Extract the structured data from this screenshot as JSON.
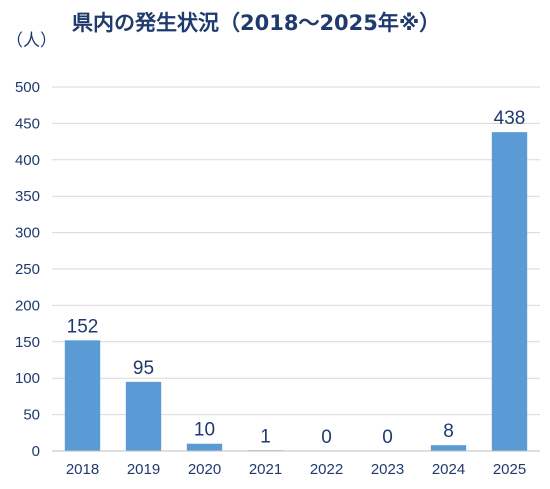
{
  "chart_data": {
    "type": "bar",
    "title": "県内の発生状況（2018～2025年※）",
    "ylabel": "（人）",
    "xlabel": "",
    "categories": [
      "2018",
      "2019",
      "2020",
      "2021",
      "2022",
      "2023",
      "2024",
      "2025"
    ],
    "values": [
      152,
      95,
      10,
      1,
      0,
      0,
      8,
      438
    ],
    "ylim": [
      0,
      500
    ],
    "yticks": [
      0,
      50,
      100,
      150,
      200,
      250,
      300,
      350,
      400,
      450,
      500
    ],
    "grid": true,
    "legend": "none",
    "bar_color": "#5b9bd5",
    "text_color": "#1f3a6e"
  }
}
